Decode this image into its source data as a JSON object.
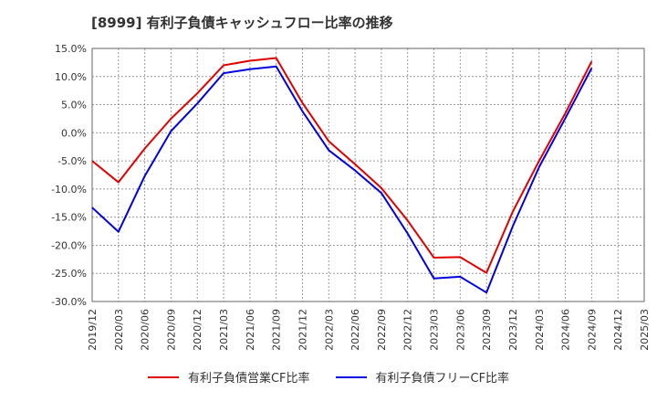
{
  "chart_data": {
    "type": "line",
    "title": "[8999]  有利子負債キャッシュフロー比率の推移",
    "x": [
      "2019/12",
      "2020/03",
      "2020/06",
      "2020/09",
      "2020/12",
      "2021/03",
      "2021/06",
      "2021/09",
      "2021/12",
      "2022/03",
      "2022/06",
      "2022/09",
      "2022/12",
      "2023/03",
      "2023/06",
      "2023/09",
      "2023/12",
      "2024/03",
      "2024/06",
      "2024/09",
      "2024/12",
      "2025/03"
    ],
    "ylim": [
      -30,
      15
    ],
    "yticks": [
      "15.0%",
      "10.0%",
      "5.0%",
      "0.0%",
      "-5.0%",
      "-10.0%",
      "-15.0%",
      "-20.0%",
      "-25.0%",
      "-30.0%"
    ],
    "ytick_values": [
      15,
      10,
      5,
      0,
      -5,
      -10,
      -15,
      -20,
      -25,
      -30
    ],
    "grid": true,
    "legend_placement": "bottom",
    "series": [
      {
        "name": "有利子負債営業CF比率",
        "color": "#e00000",
        "values": [
          -5.0,
          -8.8,
          -2.8,
          2.5,
          7.0,
          12.0,
          12.8,
          13.3,
          5.3,
          -1.5,
          -5.6,
          -9.8,
          -15.6,
          -22.2,
          -22.1,
          -24.9,
          -14.0,
          -5.0,
          3.5,
          12.7,
          null,
          null
        ]
      },
      {
        "name": "有利子負債フリーCF比率",
        "color": "#0000e0",
        "values": [
          -13.3,
          -17.6,
          -7.7,
          0.3,
          5.2,
          10.6,
          11.3,
          11.8,
          3.8,
          -3.1,
          -6.7,
          -10.7,
          -17.9,
          -25.9,
          -25.6,
          -28.4,
          -16.6,
          -6.1,
          2.6,
          11.5,
          null,
          null
        ]
      }
    ]
  }
}
